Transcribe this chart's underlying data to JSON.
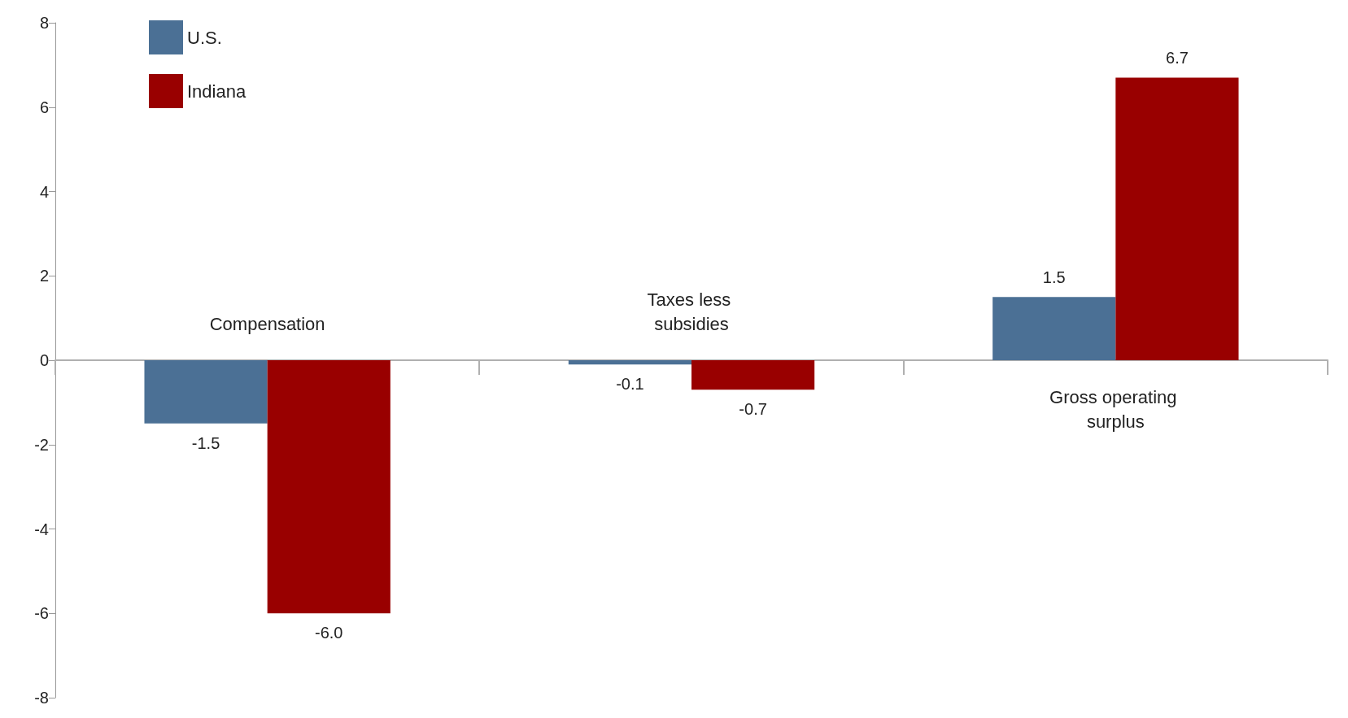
{
  "chart_data": {
    "type": "bar",
    "categories": [
      "Compensation",
      "Taxes less subsidies",
      "Gross operating surplus"
    ],
    "series": [
      {
        "name": "U.S.",
        "color": "#4b7095",
        "values": [
          -1.5,
          -0.1,
          1.5
        ],
        "value_labels": [
          "-1.5",
          "-0.1",
          "1.5"
        ]
      },
      {
        "name": "Indiana",
        "color": "#990000",
        "values": [
          -6.0,
          -0.7,
          6.7
        ],
        "value_labels": [
          "-6.0",
          "-0.7",
          "6.7"
        ]
      }
    ],
    "ylim": [
      -8,
      8
    ],
    "yticks": [
      -8,
      -6,
      -4,
      -2,
      0,
      2,
      4,
      6,
      8
    ],
    "grid": false,
    "legend": "top left"
  }
}
